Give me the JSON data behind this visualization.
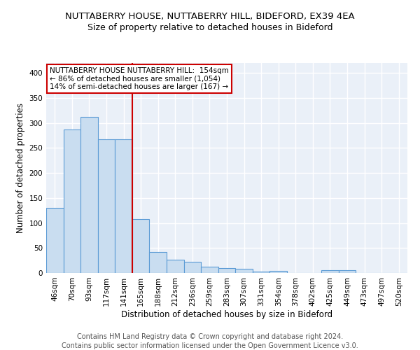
{
  "title": "NUTTABERRY HOUSE, NUTTABERRY HILL, BIDEFORD, EX39 4EA",
  "subtitle": "Size of property relative to detached houses in Bideford",
  "xlabel": "Distribution of detached houses by size in Bideford",
  "ylabel": "Number of detached properties",
  "categories": [
    "46sqm",
    "70sqm",
    "93sqm",
    "117sqm",
    "141sqm",
    "165sqm",
    "188sqm",
    "212sqm",
    "236sqm",
    "259sqm",
    "283sqm",
    "307sqm",
    "331sqm",
    "354sqm",
    "378sqm",
    "402sqm",
    "425sqm",
    "449sqm",
    "473sqm",
    "497sqm",
    "520sqm"
  ],
  "values": [
    130,
    287,
    312,
    268,
    268,
    108,
    42,
    26,
    22,
    13,
    10,
    8,
    3,
    4,
    0,
    0,
    5,
    5,
    0,
    0,
    0
  ],
  "bar_color": "#c9ddf0",
  "bar_edge_color": "#5b9bd5",
  "vline_color": "#cc0000",
  "vline_position": 4.5,
  "annotation_line1": "NUTTABERRY HOUSE NUTTABERRY HILL:  154sqm",
  "annotation_line2": "← 86% of detached houses are smaller (1,054)",
  "annotation_line3": "14% of semi-detached houses are larger (167) →",
  "annotation_box_color": "white",
  "annotation_box_edge": "#cc0000",
  "ylim": [
    0,
    420
  ],
  "yticks": [
    0,
    50,
    100,
    150,
    200,
    250,
    300,
    350,
    400
  ],
  "footer1": "Contains HM Land Registry data © Crown copyright and database right 2024.",
  "footer2": "Contains public sector information licensed under the Open Government Licence v3.0.",
  "background_color": "#eaf0f8",
  "grid_color": "#ffffff",
  "title_fontsize": 9.5,
  "subtitle_fontsize": 9,
  "axis_label_fontsize": 8.5,
  "tick_fontsize": 7.5,
  "annotation_fontsize": 7.5,
  "footer_fontsize": 7
}
